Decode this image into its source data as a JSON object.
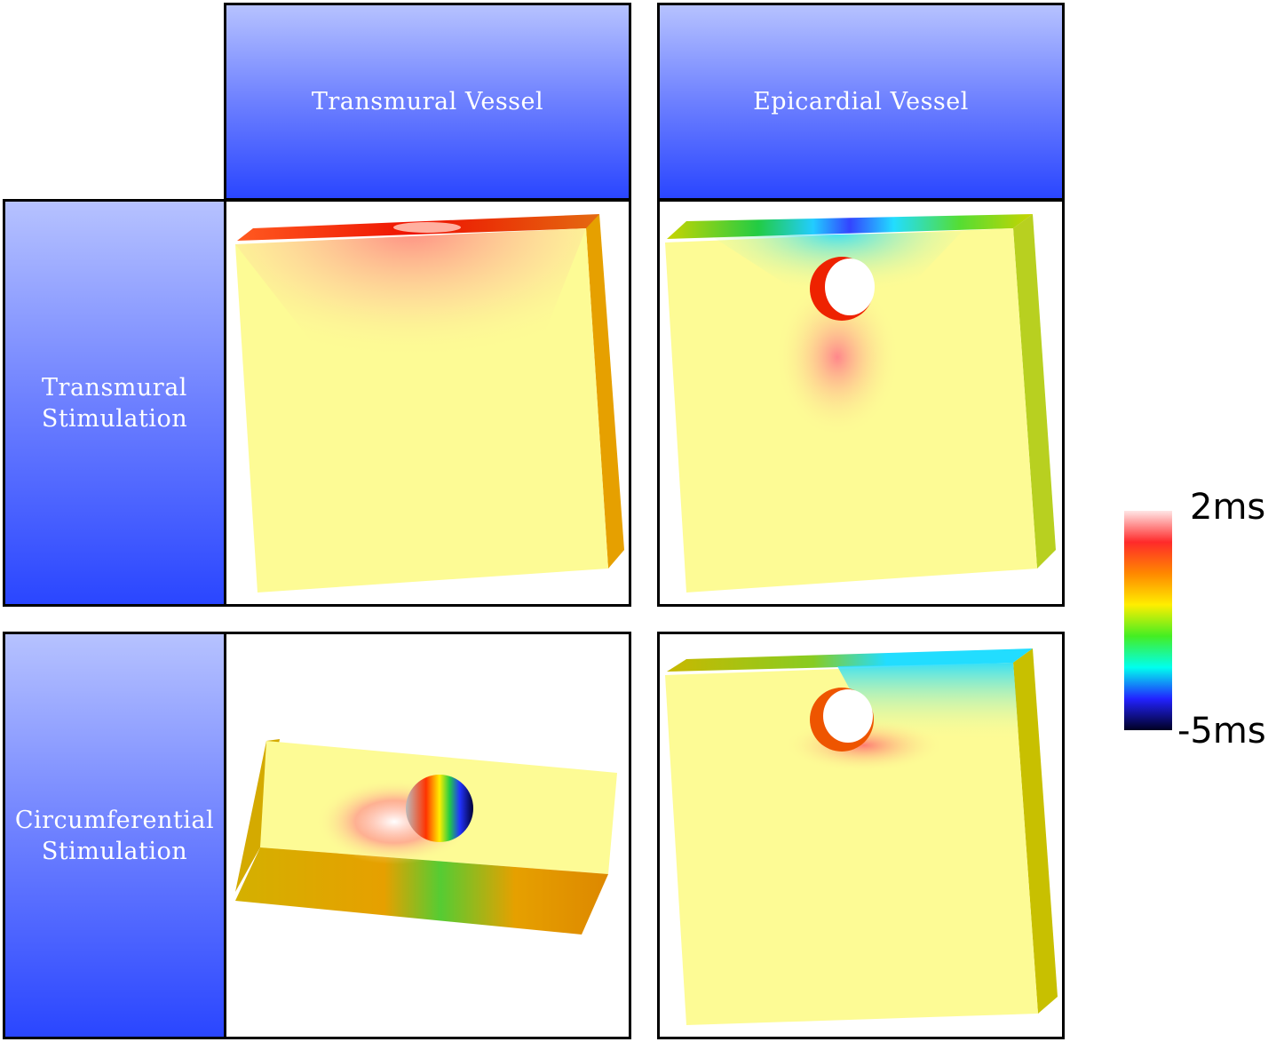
{
  "columns": [
    {
      "label": "Transmural Vessel"
    },
    {
      "label": "Epicardial Vessel"
    }
  ],
  "rows": [
    {
      "label_line1": "Transmural",
      "label_line2": "Stimulation"
    },
    {
      "label_line1": "Circumferential",
      "label_line2": "Stimulation"
    }
  ],
  "colorbar": {
    "max_label": "2ms",
    "min_label": "-5ms",
    "colors": [
      "#ffe6e6",
      "#ff2a2a",
      "#ff8800",
      "#ffee00",
      "#44ee22",
      "#00ffee",
      "#2222ff",
      "#000022"
    ]
  },
  "surface_colors": {
    "base": "#fdfb95",
    "side": "#e6a600",
    "hot": "#ff2200",
    "blush": "#ff9090",
    "cold": "#22ddff",
    "green": "#22cc44"
  }
}
